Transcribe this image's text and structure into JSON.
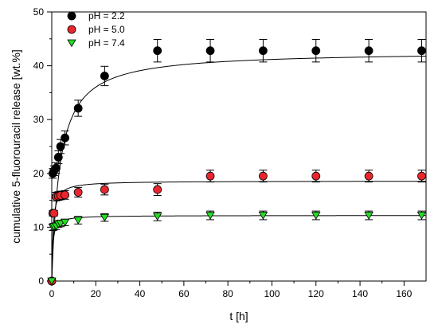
{
  "chart_data": {
    "type": "scatter",
    "xlabel": "t [h]",
    "ylabel": "cumulative 5-fluorouracil release [wt.%]",
    "xlim": [
      0,
      170
    ],
    "ylim": [
      0,
      50
    ],
    "xticks": [
      "0",
      "20",
      "40",
      "60",
      "80",
      "100",
      "120",
      "140",
      "160"
    ],
    "yticks": [
      "0",
      "10",
      "20",
      "30",
      "40",
      "50"
    ],
    "grid": false,
    "legend": "top-left",
    "series": [
      {
        "name": "pH = 2.2",
        "marker": "circle",
        "color": "#000000",
        "x": [
          0,
          0.5,
          1,
          2,
          3,
          4,
          6,
          12,
          24,
          48,
          72,
          96,
          120,
          144,
          168
        ],
        "y": [
          0,
          20.0,
          20.5,
          21.0,
          23.0,
          25.0,
          26.6,
          32.1,
          38.1,
          42.8,
          42.8,
          42.8,
          42.8,
          42.8,
          42.8
        ],
        "err": [
          0,
          0.9,
          0.9,
          1.0,
          1.2,
          1.3,
          1.3,
          1.5,
          1.8,
          2.1,
          2.1,
          2.1,
          2.1,
          2.1,
          2.1
        ],
        "fit_asymptote": 42.7,
        "fit_k": 3.7
      },
      {
        "name": "pH = 5.0",
        "marker": "circle",
        "color": "#e8262d",
        "x": [
          0,
          0.5,
          1,
          2,
          3,
          4,
          6,
          12,
          24,
          48,
          72,
          96,
          120,
          144,
          168
        ],
        "y": [
          0,
          12.6,
          12.6,
          15.7,
          15.8,
          15.9,
          16.0,
          16.5,
          17.0,
          17.0,
          19.5,
          19.5,
          19.5,
          19.5,
          19.5
        ],
        "err": [
          0,
          0.5,
          0.5,
          0.8,
          0.8,
          0.8,
          0.8,
          0.9,
          1.0,
          1.1,
          1.1,
          1.1,
          1.1,
          1.1,
          1.1
        ],
        "fit_asymptote": 18.6,
        "fit_k": 0.6
      },
      {
        "name": "pH = 7.4",
        "marker": "triangle-down",
        "color": "#22dd22",
        "x": [
          0,
          0.5,
          1,
          2,
          3,
          4,
          6,
          12,
          24,
          48,
          72,
          96,
          120,
          144,
          168
        ],
        "y": [
          0,
          10.0,
          10.1,
          10.2,
          10.6,
          10.7,
          10.9,
          11.3,
          11.8,
          12.0,
          12.2,
          12.2,
          12.2,
          12.2,
          12.2
        ],
        "err": [
          0,
          0.6,
          0.6,
          0.6,
          0.6,
          0.6,
          0.6,
          0.7,
          0.7,
          0.8,
          0.8,
          0.8,
          0.8,
          0.8,
          0.8
        ],
        "fit_asymptote": 12.2,
        "fit_k": 0.45
      }
    ]
  }
}
